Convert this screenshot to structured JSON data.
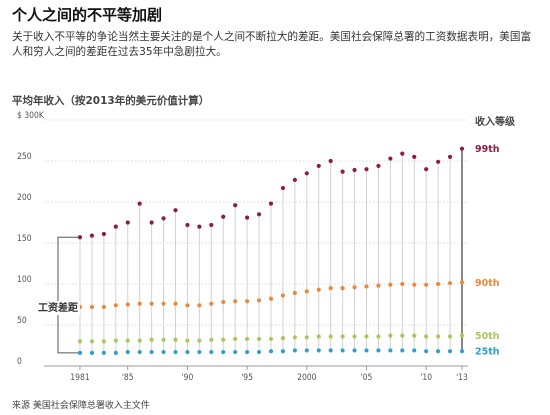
{
  "title": "个人之间的不平等加剧",
  "subtitle": "关于收入不平等的争论当然主要关注的是个人之间不断拉大的差距。美国社会保障总署的工资数据表明，美国富人和穷人之间的差距在过去35年中急剧拉大。",
  "source": "来源  美国社会保障总署收入主文件",
  "chart_data": {
    "type": "scatter",
    "title": "平均年收入（按2013年的美元价值计算）",
    "legend_title": "收入等级",
    "gap_label": "工资差距",
    "ylabel": "",
    "xlabel": "",
    "ylim": [
      0,
      300
    ],
    "xlim": [
      1981,
      2013
    ],
    "grid": true,
    "x": [
      1981,
      1982,
      1983,
      1984,
      1985,
      1986,
      1987,
      1988,
      1989,
      1990,
      1991,
      1992,
      1993,
      1994,
      1995,
      1996,
      1997,
      1998,
      1999,
      2000,
      2001,
      2002,
      2003,
      2004,
      2005,
      2006,
      2007,
      2008,
      2009,
      2010,
      2011,
      2012,
      2013
    ],
    "x_tick_values": [
      1981,
      1985,
      1990,
      1995,
      2000,
      2005,
      2010,
      2013
    ],
    "x_tick_labels": [
      "1981",
      "'85",
      "'90",
      "'95",
      "2000",
      "'05",
      "'10",
      "'13"
    ],
    "y_ticks": [
      {
        "value": 300,
        "label": "$ 300K"
      },
      {
        "value": 250,
        "label": "250"
      },
      {
        "value": 200,
        "label": "200"
      },
      {
        "value": 150,
        "label": "150"
      },
      {
        "value": 100,
        "label": "100"
      },
      {
        "value": 50,
        "label": "50"
      },
      {
        "value": 0,
        "label": "0"
      }
    ],
    "series": [
      {
        "name": "99th",
        "color": "#8e1b48",
        "values": [
          157,
          159,
          161,
          170,
          175,
          198,
          175,
          180,
          190,
          172,
          170,
          172,
          182,
          196,
          181,
          185,
          198,
          217,
          227,
          235,
          244,
          250,
          237,
          239,
          240,
          244,
          253,
          259,
          255,
          240,
          249,
          255,
          265
        ]
      },
      {
        "name": "90th",
        "color": "#e8893c",
        "values": [
          72,
          72,
          72,
          74,
          75,
          76,
          76,
          76,
          76,
          74,
          74,
          76,
          78,
          79,
          79,
          80,
          82,
          86,
          89,
          91,
          93,
          95,
          95,
          96,
          97,
          98,
          99,
          100,
          99,
          99,
          100,
          101,
          102
        ]
      },
      {
        "name": "50th",
        "color": "#a6c95b",
        "values": [
          30,
          30,
          30,
          31,
          31,
          31,
          32,
          32,
          32,
          31,
          31,
          32,
          32,
          33,
          33,
          33,
          33,
          34,
          35,
          35,
          36,
          36,
          36,
          36,
          36,
          36,
          37,
          37,
          37,
          36,
          36,
          36,
          37
        ]
      },
      {
        "name": "25th",
        "color": "#2f9fcb",
        "values": [
          16,
          16,
          16,
          16,
          17,
          17,
          17,
          17,
          17,
          17,
          17,
          17,
          17,
          17,
          17,
          17,
          18,
          18,
          19,
          19,
          19,
          19,
          19,
          19,
          19,
          19,
          19,
          19,
          19,
          18,
          18,
          18,
          18
        ]
      }
    ]
  }
}
